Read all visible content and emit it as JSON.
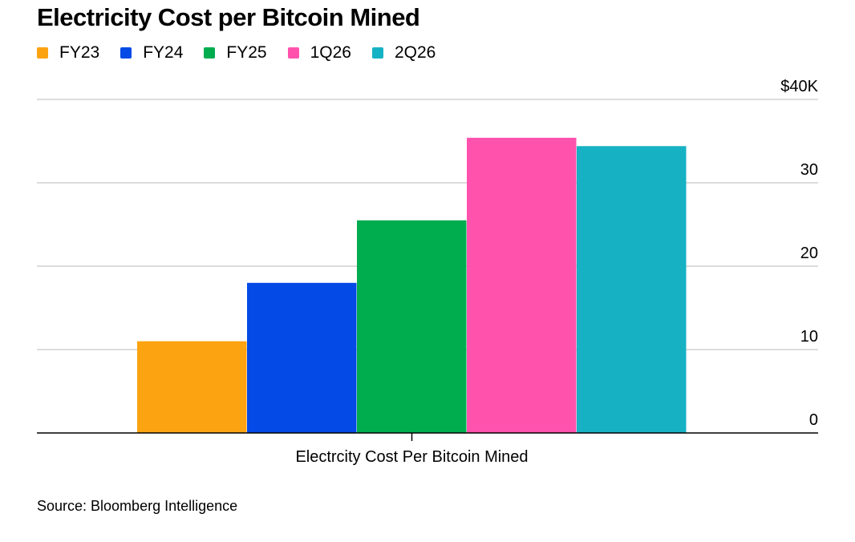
{
  "chart_data": {
    "type": "bar",
    "title": "Electricity Cost per Bitcoin Mined",
    "categories": [
      "Electrcity Cost Per Bitcoin Mined"
    ],
    "series": [
      {
        "name": "FY23",
        "values": [
          11.0
        ],
        "color": "#fca311"
      },
      {
        "name": "FY24",
        "values": [
          18.0
        ],
        "color": "#034ae6"
      },
      {
        "name": "FY25",
        "values": [
          25.5
        ],
        "color": "#00ad4e"
      },
      {
        "name": "1Q26",
        "values": [
          35.4
        ],
        "color": "#ff52ad"
      },
      {
        "name": "2Q26",
        "values": [
          34.4
        ],
        "color": "#16b2c4"
      }
    ],
    "ylim": [
      0,
      40
    ],
    "yticks": [
      0,
      10,
      20,
      30,
      40
    ],
    "ytick_labels": [
      "0",
      "10",
      "20",
      "30",
      "$40K"
    ],
    "y_axis_side": "right",
    "grid": true,
    "legend": "top-left",
    "xlabel": "",
    "ylabel": "",
    "source": "Source: Bloomberg Intelligence"
  }
}
